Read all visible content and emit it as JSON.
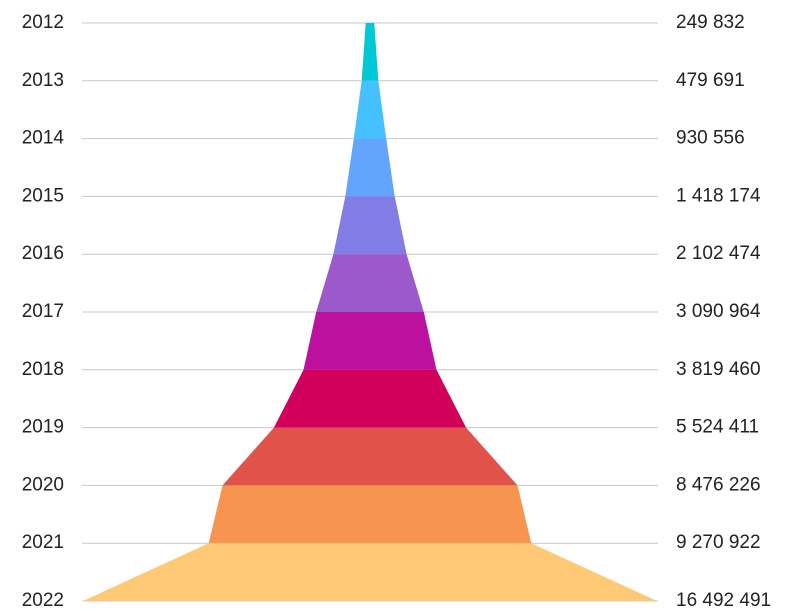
{
  "chart_data": {
    "type": "funnel",
    "title": "",
    "xlabel": "",
    "ylabel": "",
    "grid": true,
    "legend": "none",
    "categories": [
      "2012",
      "2013",
      "2014",
      "2015",
      "2016",
      "2017",
      "2018",
      "2019",
      "2020",
      "2021",
      "2022"
    ],
    "values": [
      249832,
      479691,
      930556,
      1418174,
      2102474,
      3090964,
      3819460,
      5524411,
      8476226,
      9270922,
      16492491
    ],
    "value_labels": [
      "249 832",
      "479 691",
      "930 556",
      "1 418 174",
      "2 102 474",
      "3 090 964",
      "3 819 460",
      "5 524 411",
      "8 476 226",
      "9 270 922",
      "16 492 491"
    ],
    "colors": [
      "#00c8d7",
      "#45c1ff",
      "#63a4ff",
      "#817ce6",
      "#9b59cc",
      "#bc109f",
      "#d1005a",
      "#e0524a",
      "#f7944f",
      "#ffc875"
    ]
  }
}
